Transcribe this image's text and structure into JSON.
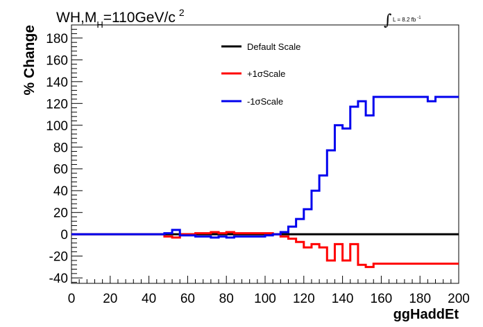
{
  "title": {
    "main": "WH,M",
    "sub": "H",
    "tail": "=110GeV/c",
    "sup": "2"
  },
  "luminosity": {
    "integral_symbol": "∫",
    "label": "L = 8.2 fb",
    "exponent": "-1"
  },
  "chart_data": {
    "type": "line",
    "xlabel": "ggHaddEt",
    "ylabel": "% Change",
    "xlim": [
      0,
      200
    ],
    "ylim": [
      -45,
      192
    ],
    "x_ticks": [
      0,
      20,
      40,
      60,
      80,
      100,
      120,
      140,
      160,
      180,
      200
    ],
    "y_ticks": [
      -40,
      -20,
      0,
      20,
      40,
      60,
      80,
      100,
      120,
      140,
      160,
      180
    ],
    "grid": false,
    "legend_position": "top-center",
    "step_edges": [
      0,
      48,
      52,
      56,
      60,
      64,
      68,
      72,
      76,
      80,
      84,
      88,
      92,
      96,
      100,
      104,
      108,
      112,
      116,
      120,
      124,
      128,
      132,
      136,
      140,
      144,
      148,
      152,
      156,
      160,
      184,
      188,
      200
    ],
    "series": [
      {
        "name": "Default Scale",
        "color": "#000000",
        "values": [
          0,
          0,
          0,
          0,
          0,
          0,
          0,
          0,
          0,
          0,
          0,
          0,
          0,
          0,
          0,
          0,
          0,
          0,
          0,
          0,
          0,
          0,
          0,
          0,
          0,
          0,
          0,
          0,
          0,
          0,
          0,
          0
        ]
      },
      {
        "name": "+1σScale",
        "color": "#ff0000",
        "values": [
          0,
          -2,
          -3,
          0,
          0,
          1,
          1,
          2,
          1,
          2,
          1,
          1,
          1,
          1,
          1,
          0,
          -2,
          -4,
          -7,
          -12,
          -9,
          -12,
          -24,
          -9,
          -24,
          -9,
          -28,
          -30,
          -27,
          -27,
          -27,
          -27
        ]
      },
      {
        "name": "-1σScale",
        "color": "#0000ee",
        "values": [
          0,
          1,
          4,
          -1,
          -1,
          -2,
          -2,
          -3,
          -2,
          -3,
          -2,
          -2,
          -2,
          -2,
          -1,
          0,
          2,
          7,
          14,
          23,
          40,
          54,
          77,
          100,
          97,
          117,
          122,
          109,
          126,
          126,
          122,
          126
        ]
      }
    ]
  }
}
